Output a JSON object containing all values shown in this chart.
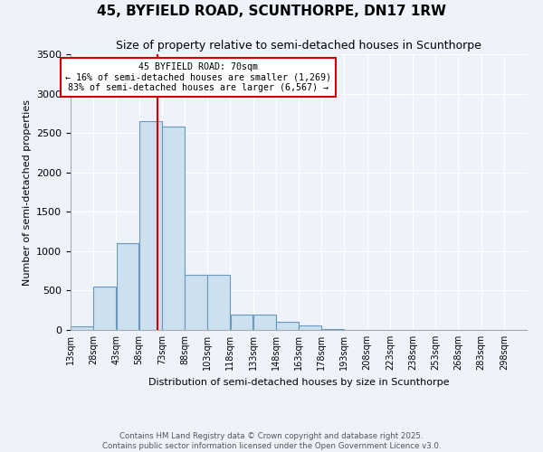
{
  "title": "45, BYFIELD ROAD, SCUNTHORPE, DN17 1RW",
  "subtitle": "Size of property relative to semi-detached houses in Scunthorpe",
  "xlabel": "Distribution of semi-detached houses by size in Scunthorpe",
  "ylabel": "Number of semi-detached properties",
  "bin_edges": [
    13,
    28,
    43,
    58,
    73,
    88,
    103,
    118,
    133,
    148,
    163,
    178,
    193,
    208,
    223,
    238,
    253,
    268,
    283,
    298,
    313
  ],
  "bar_heights": [
    50,
    550,
    1100,
    2650,
    2580,
    700,
    700,
    200,
    190,
    105,
    60,
    10,
    5,
    2,
    1,
    1,
    0,
    0,
    0,
    0
  ],
  "bar_color": "#cce0f0",
  "bar_edge_color": "#6699bb",
  "property_size": 70,
  "annotation_line1": "45 BYFIELD ROAD: 70sqm",
  "annotation_line2": "← 16% of semi-detached houses are smaller (1,269)",
  "annotation_line3": "83% of semi-detached houses are larger (6,567) →",
  "vline_color": "#cc0000",
  "annotation_box_facecolor": "#ffffff",
  "annotation_box_edgecolor": "#cc0000",
  "ylim": [
    0,
    3500
  ],
  "yticks": [
    0,
    500,
    1000,
    1500,
    2000,
    2500,
    3000,
    3500
  ],
  "bg_color": "#eef2fb",
  "plot_bg_color": "#eef2fb",
  "title_fontsize": 11,
  "subtitle_fontsize": 9,
  "ylabel_fontsize": 8,
  "xlabel_fontsize": 8,
  "footer_line1": "Contains HM Land Registry data © Crown copyright and database right 2025.",
  "footer_line2": "Contains public sector information licensed under the Open Government Licence v3.0."
}
